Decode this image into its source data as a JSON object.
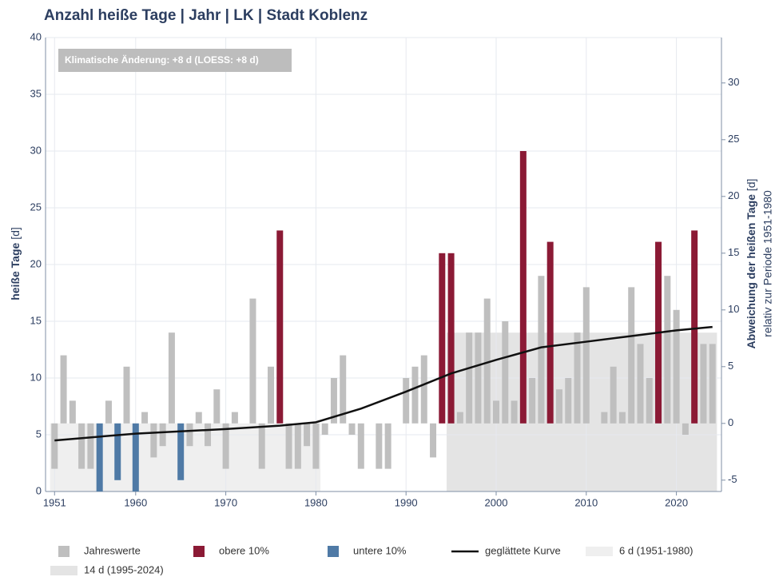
{
  "chart_data": {
    "type": "bar",
    "title": "Anzahl heiße Tage | Jahr | LK | Stadt Koblenz",
    "y_label": "heiße Tage",
    "y_unit": "[d]",
    "y2_label": "Abweichung der heißen Tage",
    "y2_unit": "[d]",
    "y2_sublabel": "relativ zur Periode 1951-1980",
    "annotation": "Klimatische Änderung: +8 d (LOESS: +8 d)",
    "xlim": [
      1950,
      2025
    ],
    "xticks": [
      1951,
      1960,
      1970,
      1980,
      1990,
      2000,
      2010,
      2020
    ],
    "ylim": [
      0,
      40
    ],
    "yticks": [
      0,
      5,
      10,
      15,
      20,
      25,
      30,
      35,
      40
    ],
    "y2lim": [
      -6,
      34
    ],
    "y2ticks": [
      -5,
      0,
      5,
      10,
      15,
      20,
      25,
      30
    ],
    "grid": true,
    "x": [
      1951,
      1952,
      1953,
      1954,
      1955,
      1956,
      1957,
      1958,
      1959,
      1960,
      1961,
      1962,
      1963,
      1964,
      1965,
      1966,
      1967,
      1968,
      1969,
      1970,
      1971,
      1972,
      1973,
      1974,
      1975,
      1976,
      1977,
      1978,
      1979,
      1980,
      1981,
      1982,
      1983,
      1984,
      1985,
      1986,
      1987,
      1988,
      1989,
      1990,
      1991,
      1992,
      1993,
      1994,
      1995,
      1996,
      1997,
      1998,
      1999,
      2000,
      2001,
      2002,
      2003,
      2004,
      2005,
      2006,
      2007,
      2008,
      2009,
      2010,
      2011,
      2012,
      2013,
      2014,
      2015,
      2016,
      2017,
      2018,
      2019,
      2020,
      2021,
      2022,
      2023,
      2024
    ],
    "series": [
      {
        "name": "Jahreswerte",
        "color": "#bfbfbf",
        "values": [
          2,
          12,
          8,
          2,
          2,
          null,
          8,
          null,
          11,
          null,
          7,
          3,
          4,
          14,
          null,
          4,
          7,
          4,
          9,
          2,
          7,
          6,
          17,
          2,
          11,
          null,
          2,
          2,
          4,
          2,
          5,
          10,
          12,
          5,
          2,
          6,
          2,
          2,
          6,
          10,
          11,
          12,
          3,
          null,
          null,
          7,
          14,
          14,
          17,
          8,
          15,
          8,
          null,
          10,
          19,
          null,
          9,
          10,
          14,
          18,
          6,
          7,
          11,
          7,
          18,
          13,
          10,
          null,
          19,
          16,
          5,
          null,
          13,
          13
        ]
      },
      {
        "name": "obere 10%",
        "color": "#8b1a35",
        "values": [
          null,
          null,
          null,
          null,
          null,
          null,
          null,
          null,
          null,
          null,
          null,
          null,
          null,
          null,
          null,
          null,
          null,
          null,
          null,
          null,
          null,
          null,
          null,
          null,
          null,
          23,
          null,
          null,
          null,
          null,
          null,
          null,
          null,
          null,
          null,
          null,
          null,
          null,
          null,
          null,
          null,
          null,
          null,
          21,
          21,
          null,
          null,
          null,
          null,
          null,
          null,
          null,
          30,
          null,
          null,
          22,
          null,
          null,
          null,
          null,
          null,
          null,
          null,
          null,
          null,
          null,
          null,
          22,
          null,
          null,
          null,
          23,
          null,
          null
        ]
      },
      {
        "name": "untere 10%",
        "color": "#4f7aa6",
        "values": [
          null,
          null,
          null,
          null,
          null,
          0,
          null,
          1,
          null,
          0,
          null,
          null,
          null,
          null,
          1,
          null,
          null,
          null,
          null,
          null,
          null,
          null,
          null,
          null,
          null,
          null,
          null,
          null,
          null,
          null,
          null,
          null,
          null,
          null,
          null,
          null,
          null,
          null,
          null,
          null,
          null,
          null,
          null,
          null,
          null,
          null,
          null,
          null,
          null,
          null,
          null,
          null,
          null,
          null,
          null,
          null,
          null,
          null,
          null,
          null,
          null,
          null,
          null,
          null,
          null,
          null,
          null,
          null,
          null,
          null,
          null,
          null,
          null,
          null
        ]
      }
    ],
    "smooth": {
      "name": "geglättete Kurve",
      "color": "#111111",
      "x": [
        1951,
        1960,
        1970,
        1976,
        1980,
        1985,
        1990,
        1995,
        2000,
        2005,
        2010,
        2015,
        2020,
        2024
      ],
      "values": [
        4.5,
        5.1,
        5.5,
        5.8,
        6.1,
        7.3,
        8.8,
        10.4,
        11.6,
        12.7,
        13.2,
        13.7,
        14.2,
        14.5
      ]
    },
    "reference_periods": [
      {
        "label": "6 d (1951-1980)",
        "value": 6,
        "start": 1951,
        "end": 1980,
        "color": "#efefef"
      },
      {
        "label": "14 d (1995-2024)",
        "value": 14,
        "start": 1995,
        "end": 2024,
        "color": "#e4e4e4"
      }
    ]
  }
}
